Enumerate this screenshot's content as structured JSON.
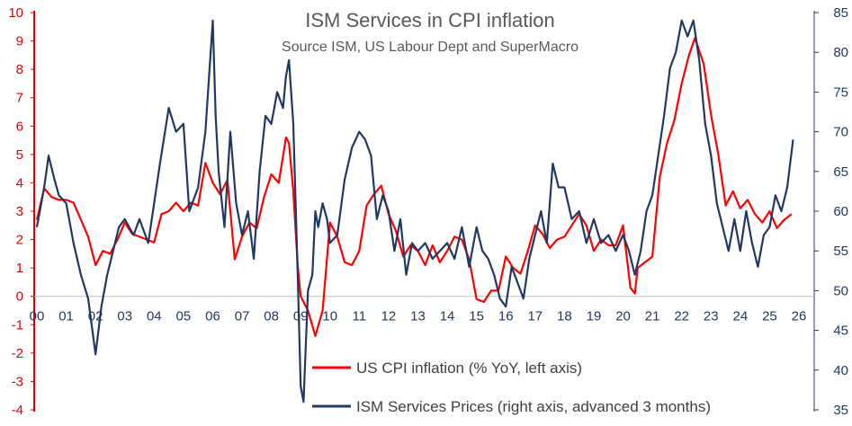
{
  "chart_data": {
    "type": "line",
    "title": "ISM Services in CPI inflation",
    "subtitle": "Source ISM, US Labour Dept and SuperMacro",
    "x_labels": [
      "00",
      "01",
      "02",
      "03",
      "04",
      "05",
      "06",
      "07",
      "08",
      "09",
      "10",
      "11",
      "12",
      "13",
      "14",
      "15",
      "16",
      "17",
      "18",
      "19",
      "20",
      "21",
      "22",
      "23",
      "24",
      "25",
      "26"
    ],
    "left_axis": {
      "ylim": [
        -4,
        10
      ],
      "ticks": [
        "-4",
        "-3",
        "-2",
        "-1",
        "0",
        "1",
        "2",
        "3",
        "4",
        "5",
        "6",
        "7",
        "8",
        "9",
        "10"
      ]
    },
    "right_axis": {
      "ylim": [
        35,
        85
      ],
      "ticks": [
        "35",
        "40",
        "45",
        "50",
        "55",
        "60",
        "65",
        "70",
        "75",
        "80",
        "85"
      ]
    },
    "legend_placement": "bottom-center",
    "colors": {
      "cpi": "#ff0000",
      "ism": "#1f3864",
      "left_axis": "#e00000"
    },
    "series": [
      {
        "name": "US CPI inflation (% YoY, left axis)",
        "axis": "left",
        "x": [
          2000.0,
          2000.25,
          2000.5,
          2000.75,
          2001.0,
          2001.25,
          2001.5,
          2001.75,
          2002.0,
          2002.25,
          2002.5,
          2002.75,
          2003.0,
          2003.25,
          2003.5,
          2003.75,
          2004.0,
          2004.25,
          2004.5,
          2004.75,
          2005.0,
          2005.25,
          2005.5,
          2005.75,
          2006.0,
          2006.25,
          2006.5,
          2006.75,
          2007.0,
          2007.25,
          2007.5,
          2007.75,
          2008.0,
          2008.25,
          2008.5,
          2008.6,
          2008.75,
          2008.9,
          2009.0,
          2009.25,
          2009.5,
          2009.75,
          2010.0,
          2010.25,
          2010.5,
          2010.75,
          2011.0,
          2011.25,
          2011.5,
          2011.75,
          2012.0,
          2012.25,
          2012.5,
          2012.75,
          2013.0,
          2013.25,
          2013.5,
          2013.75,
          2014.0,
          2014.25,
          2014.5,
          2014.75,
          2015.0,
          2015.25,
          2015.5,
          2015.75,
          2016.0,
          2016.25,
          2016.5,
          2016.75,
          2017.0,
          2017.25,
          2017.5,
          2017.75,
          2018.0,
          2018.25,
          2018.5,
          2018.75,
          2019.0,
          2019.25,
          2019.5,
          2019.75,
          2020.0,
          2020.25,
          2020.4,
          2020.5,
          2020.75,
          2021.0,
          2021.25,
          2021.5,
          2021.75,
          2022.0,
          2022.25,
          2022.45,
          2022.75,
          2023.0,
          2023.25,
          2023.5,
          2023.75,
          2024.0,
          2024.25,
          2024.5,
          2024.75,
          2025.0,
          2025.25,
          2025.5,
          2025.75
        ],
        "values": [
          2.7,
          3.8,
          3.5,
          3.4,
          3.4,
          3.3,
          2.7,
          2.1,
          1.1,
          1.6,
          1.5,
          2.0,
          2.6,
          2.2,
          2.1,
          2.0,
          1.9,
          2.9,
          3.0,
          3.3,
          3.0,
          3.3,
          3.2,
          4.7,
          4.0,
          3.6,
          4.1,
          1.3,
          2.1,
          2.6,
          2.4,
          3.5,
          4.3,
          4.0,
          5.6,
          5.4,
          3.7,
          1.1,
          0.0,
          -0.5,
          -1.4,
          -0.5,
          2.6,
          2.1,
          1.2,
          1.1,
          1.6,
          3.2,
          3.6,
          3.9,
          2.9,
          2.3,
          1.4,
          1.8,
          1.6,
          1.1,
          1.8,
          1.2,
          1.6,
          2.1,
          2.0,
          1.3,
          -0.1,
          -0.2,
          0.2,
          0.2,
          1.4,
          1.0,
          0.8,
          1.6,
          2.5,
          2.2,
          1.7,
          2.0,
          2.1,
          2.5,
          2.9,
          2.5,
          1.6,
          2.0,
          1.8,
          1.8,
          2.5,
          0.3,
          0.1,
          1.0,
          1.2,
          1.4,
          4.2,
          5.4,
          6.2,
          7.5,
          8.5,
          9.1,
          8.2,
          6.4,
          5.0,
          3.2,
          3.7,
          3.1,
          3.4,
          2.9,
          2.6,
          3.0,
          2.4,
          2.7,
          2.9
        ]
      },
      {
        "name": "ISM Services Prices (right axis, advanced 3 months)",
        "axis": "right",
        "x": [
          2000.0,
          2000.25,
          2000.4,
          2000.6,
          2000.75,
          2001.0,
          2001.25,
          2001.5,
          2001.75,
          2002.0,
          2002.2,
          2002.4,
          2002.6,
          2002.8,
          2003.0,
          2003.3,
          2003.5,
          2003.8,
          2004.0,
          2004.2,
          2004.5,
          2004.75,
          2005.0,
          2005.2,
          2005.5,
          2005.75,
          2006.0,
          2006.1,
          2006.2,
          2006.4,
          2006.6,
          2006.8,
          2007.0,
          2007.2,
          2007.4,
          2007.6,
          2007.8,
          2008.0,
          2008.2,
          2008.4,
          2008.5,
          2008.6,
          2008.75,
          2008.9,
          2009.0,
          2009.1,
          2009.25,
          2009.4,
          2009.5,
          2009.6,
          2009.75,
          2009.9,
          2010.0,
          2010.25,
          2010.5,
          2010.75,
          2011.0,
          2011.2,
          2011.4,
          2011.6,
          2011.8,
          2012.0,
          2012.2,
          2012.4,
          2012.6,
          2012.8,
          2013.0,
          2013.25,
          2013.5,
          2013.75,
          2014.0,
          2014.25,
          2014.5,
          2014.75,
          2015.0,
          2015.2,
          2015.4,
          2015.6,
          2015.8,
          2016.0,
          2016.2,
          2016.4,
          2016.6,
          2016.8,
          2017.0,
          2017.2,
          2017.4,
          2017.6,
          2017.8,
          2018.0,
          2018.25,
          2018.5,
          2018.75,
          2019.0,
          2019.25,
          2019.5,
          2019.75,
          2020.0,
          2020.2,
          2020.4,
          2020.6,
          2020.8,
          2021.0,
          2021.2,
          2021.4,
          2021.6,
          2021.8,
          2022.0,
          2022.2,
          2022.4,
          2022.6,
          2022.8,
          2023.0,
          2023.2,
          2023.4,
          2023.6,
          2023.8,
          2024.0,
          2024.2,
          2024.4,
          2024.6,
          2024.8,
          2025.0,
          2025.2,
          2025.4,
          2025.6,
          2025.8
        ],
        "values": [
          58,
          63,
          67,
          64,
          62,
          61,
          56,
          52,
          49,
          42,
          48,
          52,
          55,
          58,
          59,
          57,
          59,
          56,
          61,
          66,
          73,
          70,
          71,
          60,
          63,
          70,
          84,
          72,
          65,
          58,
          70,
          61,
          57,
          60,
          54,
          65,
          72,
          71,
          75,
          73,
          77,
          79,
          71,
          52,
          38,
          36,
          50,
          52,
          60,
          58,
          61,
          59,
          56,
          57,
          64,
          68,
          70,
          69,
          67,
          59,
          62,
          60,
          55,
          59,
          52,
          56,
          55,
          56,
          54,
          55,
          56,
          54,
          58,
          53,
          58,
          55,
          54,
          52,
          49,
          48,
          53,
          51,
          49,
          54,
          57,
          60,
          56,
          66,
          63,
          63,
          59,
          60,
          56,
          59,
          56,
          57,
          55,
          57,
          55,
          52,
          55,
          60,
          62,
          67,
          72,
          78,
          80,
          84,
          82,
          84,
          79,
          71,
          67,
          61,
          58,
          55,
          59,
          55,
          60,
          56,
          53,
          57,
          58,
          62,
          60,
          63,
          69
        ]
      }
    ]
  }
}
